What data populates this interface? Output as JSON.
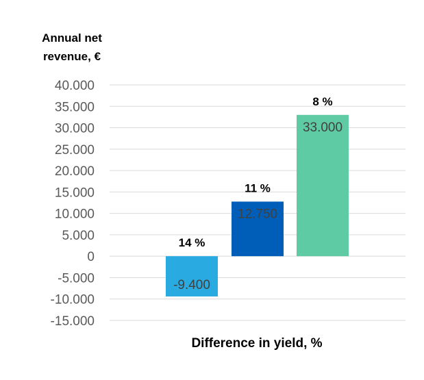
{
  "chart_data": {
    "type": "bar",
    "title": "",
    "ylabel_lines": [
      "Annual net",
      "revenue, €"
    ],
    "xlabel": "Difference in yield, %",
    "categories": [
      "14 %",
      "11 %",
      "8 %"
    ],
    "values": [
      -9400,
      12750,
      33000
    ],
    "value_labels": [
      "-9.400",
      "12.750",
      "33.000"
    ],
    "colors": [
      "#29abe2",
      "#005eb8",
      "#5ecba5"
    ],
    "ylim": [
      -15000,
      40000
    ],
    "yticks": [
      40000,
      35000,
      30000,
      25000,
      20000,
      15000,
      10000,
      5000,
      0,
      -5000,
      -10000,
      -15000
    ],
    "ytick_labels": [
      "40.000",
      "35.000",
      "30.000",
      "25.000",
      "20.000",
      "15.000",
      "10.000",
      "5.000",
      "0",
      "-5.000",
      "-10.000",
      "-15.000"
    ],
    "grid": true,
    "gridline_color": "#d9d9d9"
  }
}
